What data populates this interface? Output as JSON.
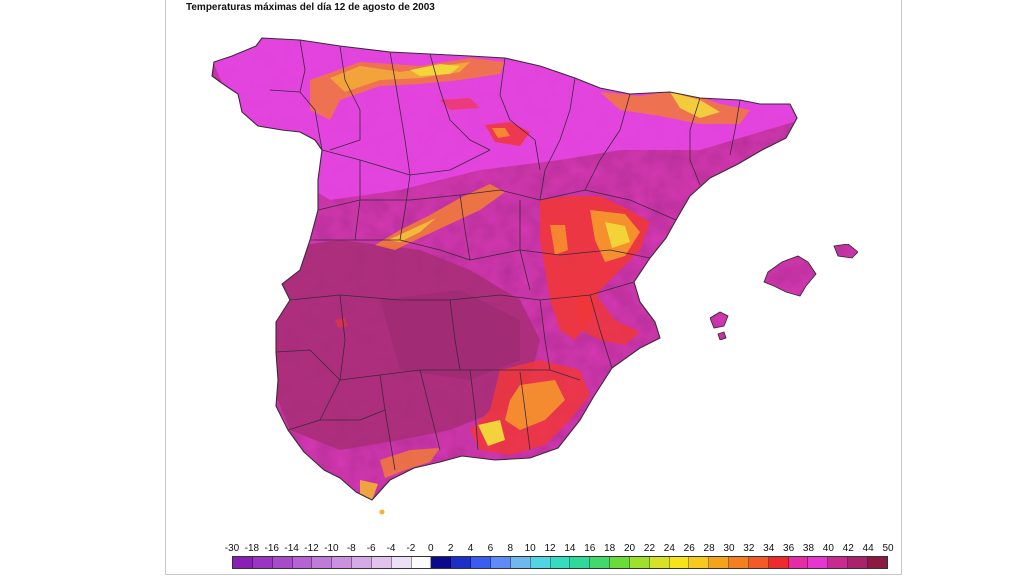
{
  "title": "Temperaturas máximas del día 12 de agosto de 2003",
  "legend": {
    "ticks": [
      "-30",
      "-18",
      "-16",
      "-14",
      "-12",
      "-10",
      "-8",
      "-6",
      "-4",
      "-2",
      "0",
      "2",
      "4",
      "6",
      "8",
      "10",
      "12",
      "14",
      "16",
      "18",
      "20",
      "22",
      "24",
      "26",
      "28",
      "30",
      "32",
      "34",
      "36",
      "38",
      "40",
      "42",
      "44",
      "50"
    ],
    "colors": [
      "#8a1fb8",
      "#9a34c2",
      "#a84bcb",
      "#b563d3",
      "#c07ad9",
      "#cb91df",
      "#d6aae6",
      "#e1c3ee",
      "#ece0f6",
      "#fbfbfb",
      "#0a0a8a",
      "#1c2fc6",
      "#3a5cf0",
      "#5d8cf7",
      "#6fb8ee",
      "#4fd6e0",
      "#35dcc0",
      "#2fd99a",
      "#42d86a",
      "#6bdb3a",
      "#9fe02a",
      "#d4e327",
      "#f6e418",
      "#f8c81a",
      "#f6a31c",
      "#f57e21",
      "#f35a26",
      "#ee2a2c",
      "#e52ca6",
      "#e636cf",
      "#c92a8f",
      "#a8226c",
      "#8c1a3e"
    ]
  },
  "map_colors": {
    "very_hot": "#a82e78",
    "hot": "#d93bb6",
    "warm": "#e846e6",
    "mild_red": "#f0363a",
    "orange": "#f79a2b",
    "yellow": "#f3dc3a"
  }
}
